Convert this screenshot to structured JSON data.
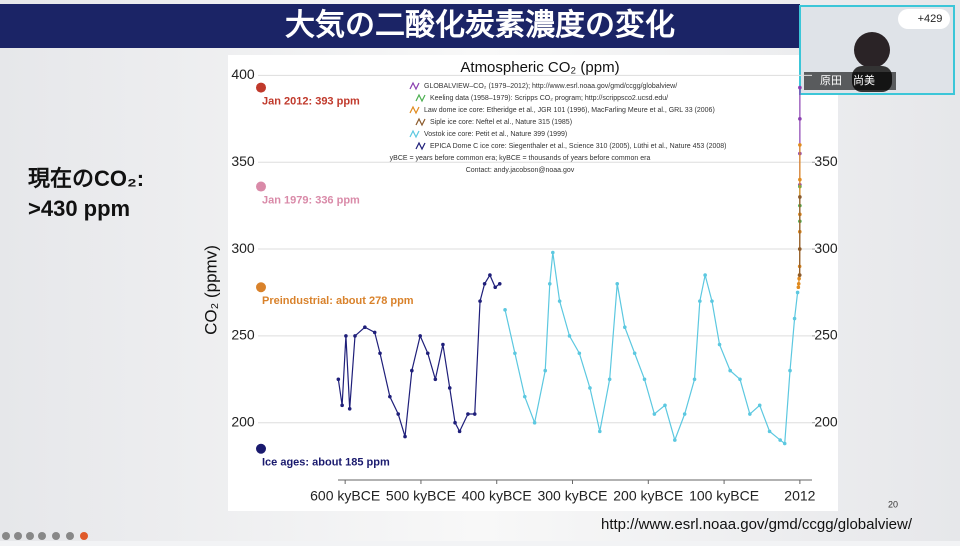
{
  "slide": {
    "heading": "大気の二酸化炭素濃度の変化",
    "callout": [
      "現在のCO₂:",
      ">430 ppm"
    ],
    "page_number": "20",
    "source_url": "http://www.esrl.noaa.gov/gmd/ccgg/globalview/"
  },
  "video": {
    "participant": "原田　尚美",
    "viewer_count": "+429"
  },
  "chart_data": {
    "type": "line",
    "title": "Atmospheric CO₂ (ppm)",
    "y_label": "CO₂ (ppmv)",
    "xlim": [
      -715,
      16
    ],
    "xticks": [
      {
        "value": -600,
        "label": "600 kyBCE"
      },
      {
        "value": -500,
        "label": "500 kyBCE"
      },
      {
        "value": -400,
        "label": "400 kyBCE"
      },
      {
        "value": -300,
        "label": "300 kyBCE"
      },
      {
        "value": -200,
        "label": "200 kyBCE"
      },
      {
        "value": -100,
        "label": "100 kyBCE"
      },
      {
        "value": 0,
        "label": "2012"
      }
    ],
    "ylim": [
      167,
      406
    ],
    "yticks": [
      200,
      250,
      300,
      350,
      400
    ],
    "y2lim": [
      167,
      406
    ],
    "y2ticks": [
      200,
      250,
      300,
      350
    ],
    "grid": true,
    "series": [
      {
        "name": "GLOBALVIEW–CO₂ (1979–2012); http://www.esrl.noaa.gov/gmd/ccgg/globalview/",
        "color": "#8a3fb0",
        "x": [
          0,
          0,
          0,
          0
        ],
        "values": [
          337,
          355,
          375,
          393
        ]
      },
      {
        "name": "Keeling data (1958–1979): Scripps CO₂ program; http://scrippsco2.ucsd.edu/",
        "color": "#4caf50",
        "x": [
          0,
          0,
          0
        ],
        "values": [
          316,
          325,
          336
        ]
      },
      {
        "name": "Law dome ice core: Etheridge et al., JGR 101 (1996), MacFarling Meure et al., GRL 33 (2006)",
        "color": "#e08a1e",
        "x": [
          -2,
          -1.5,
          -1,
          -0.5,
          -0.3,
          -0.2,
          -0.1,
          0,
          0,
          0
        ],
        "values": [
          278,
          280,
          283,
          285,
          290,
          300,
          310,
          320,
          340,
          360
        ]
      },
      {
        "name": "Siple ice core: Neftel et al., Nature 315 (1985)",
        "color": "#8b5a2b",
        "x": [
          -0.2,
          -0.1,
          0
        ],
        "values": [
          285,
          300,
          330
        ]
      },
      {
        "name": "Vostok ice core: Petit et al., Nature 399 (1999)",
        "color": "#5cc8e0",
        "x": [
          -389,
          -376,
          -363,
          -350,
          -336,
          -330,
          -326,
          -317,
          -304,
          -291,
          -277,
          -264,
          -251,
          -241,
          -231,
          -218,
          -205,
          -192,
          -178,
          -165,
          -152,
          -139,
          -132,
          -125,
          -116,
          -106,
          -92,
          -79,
          -66,
          -53,
          -40,
          -26,
          -20,
          -13,
          -7,
          -3
        ],
        "values": [
          265,
          240,
          215,
          200,
          230,
          280,
          298,
          270,
          250,
          240,
          220,
          195,
          225,
          280,
          255,
          240,
          225,
          205,
          210,
          190,
          205,
          225,
          270,
          285,
          270,
          245,
          230,
          225,
          205,
          210,
          195,
          190,
          188,
          230,
          260,
          275
        ]
      },
      {
        "name": "EPICA Dome C ice core: Siegenthaler et al., Science 310 (2005), Lüthi et al., Nature 453 (2008)",
        "color": "#1f1f7a",
        "x": [
          -609,
          -604,
          -599,
          -594,
          -587,
          -574,
          -561,
          -554,
          -541,
          -530,
          -521,
          -512,
          -501,
          -491,
          -481,
          -471,
          -462,
          -455,
          -449,
          -438,
          -429,
          -422,
          -416,
          -409,
          -402,
          -396
        ],
        "values": [
          225,
          210,
          250,
          208,
          250,
          255,
          252,
          240,
          215,
          205,
          192,
          230,
          250,
          240,
          225,
          245,
          220,
          200,
          195,
          205,
          205,
          270,
          280,
          285,
          278,
          280
        ]
      }
    ],
    "notes": [
      "yBCE = years before common era; kyBCE = thousands of years before common era",
      "Contact: andy.jacobson@noaa.gov"
    ],
    "annotations": [
      {
        "text": "Jan 2012: 393 ppm",
        "value": 393,
        "color": "#c0392b"
      },
      {
        "text": "Jan 1979: 336 ppm",
        "value": 336,
        "color": "#d98aa8"
      },
      {
        "text": "Preindustrial: about 278 ppm",
        "value": 278,
        "color": "#d9822b"
      },
      {
        "text": "Ice ages: about 185 ppm",
        "value": 185,
        "color": "#1a1a6e"
      }
    ]
  }
}
